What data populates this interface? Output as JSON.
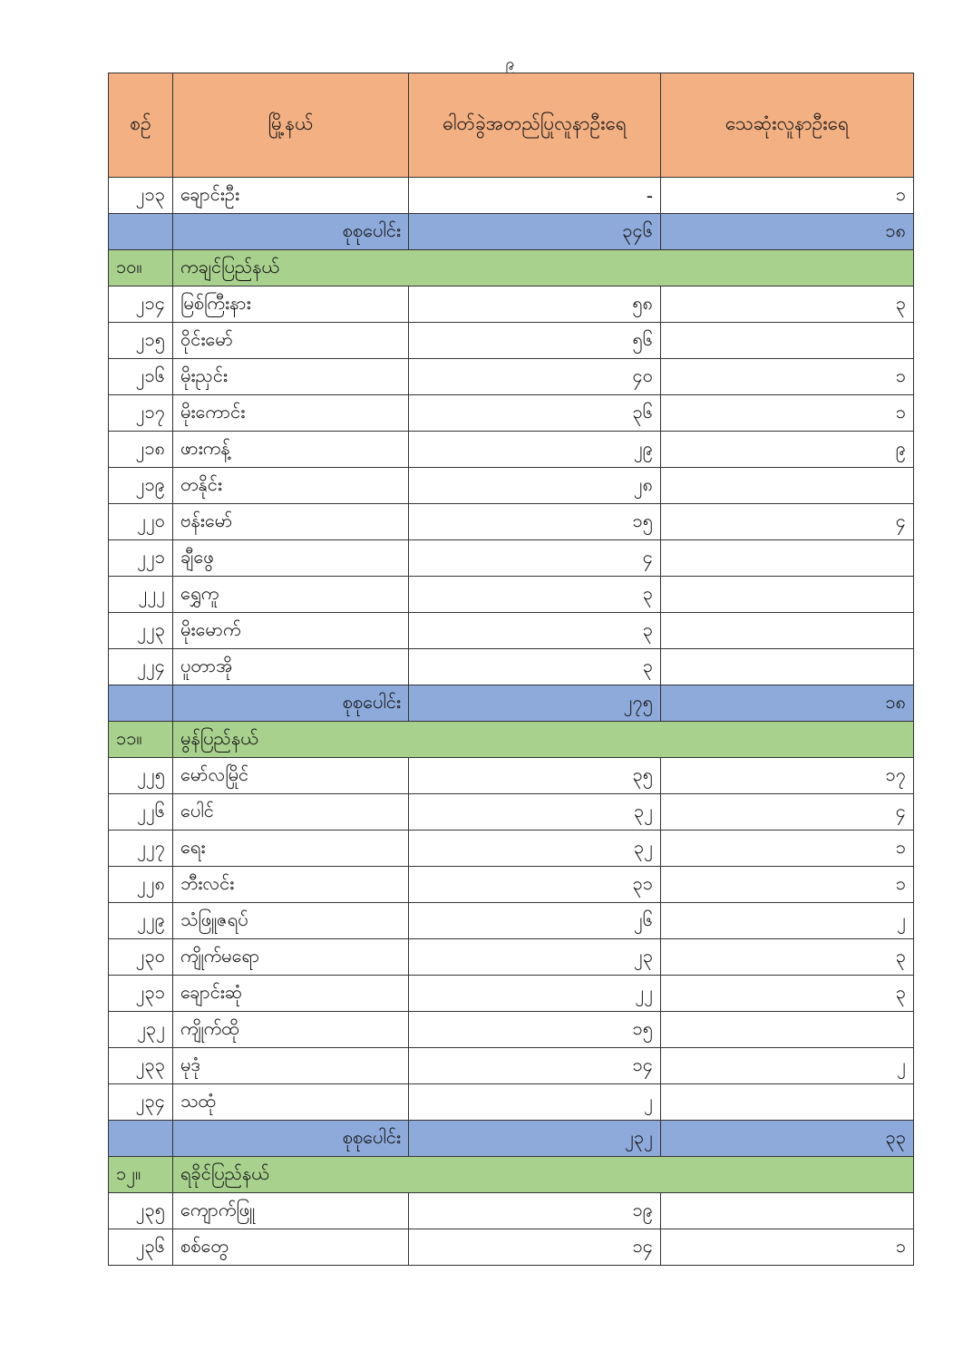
{
  "page_number": "၉",
  "table": {
    "headers": [
      "စဉ်",
      "မြို့နယ်",
      "ဓါတ်ခွဲအတည်ပြုလူနာဦးရေ",
      "သေဆုံးလူနာဦးရေ"
    ],
    "rows": [
      {
        "type": "row",
        "no": "၂၁၃",
        "name": "ချောင်းဦး",
        "confirmed": "-",
        "deaths": "၁"
      },
      {
        "type": "total",
        "name": "စုစုပေါင်း",
        "confirmed": "၃၄၆",
        "deaths": "၁၈"
      },
      {
        "type": "section",
        "no": "၁၀။",
        "name": "ကချင်ပြည်နယ်"
      },
      {
        "type": "row",
        "no": "၂၁၄",
        "name": "မြစ်ကြီးနား",
        "confirmed": "၅၈",
        "deaths": "၃"
      },
      {
        "type": "row",
        "no": "၂၁၅",
        "name": "ဝိုင်းမော်",
        "confirmed": "၅၆",
        "deaths": ""
      },
      {
        "type": "row",
        "no": "၂၁၆",
        "name": "မိုးညှင်း",
        "confirmed": "၄၀",
        "deaths": "၁"
      },
      {
        "type": "row",
        "no": "၂၁၇",
        "name": "မိုးကောင်း",
        "confirmed": "၃၆",
        "deaths": "၁"
      },
      {
        "type": "row",
        "no": "၂၁၈",
        "name": "ဖားကန့်",
        "confirmed": "၂၉",
        "deaths": "၉"
      },
      {
        "type": "row",
        "no": "၂၁၉",
        "name": "တနိုင်း",
        "confirmed": "၂၈",
        "deaths": ""
      },
      {
        "type": "row",
        "no": "၂၂၀",
        "name": "ဗန်းမော်",
        "confirmed": "၁၅",
        "deaths": "၄"
      },
      {
        "type": "row",
        "no": "၂၂၁",
        "name": "ချီဖွေ",
        "confirmed": "၄",
        "deaths": ""
      },
      {
        "type": "row",
        "no": "၂၂၂",
        "name": "ရွှေကူ",
        "confirmed": "၃",
        "deaths": ""
      },
      {
        "type": "row",
        "no": "၂၂၃",
        "name": "မိုးမောက်",
        "confirmed": "၃",
        "deaths": ""
      },
      {
        "type": "row",
        "no": "၂၂၄",
        "name": "ပူတာအို",
        "confirmed": "၃",
        "deaths": ""
      },
      {
        "type": "total",
        "name": "စုစုပေါင်း",
        "confirmed": "၂၇၅",
        "deaths": "၁၈"
      },
      {
        "type": "section",
        "no": "၁၁။",
        "name": "မွန်ပြည်နယ်"
      },
      {
        "type": "row",
        "no": "၂၂၅",
        "name": "မော်လမြိုင်",
        "confirmed": "၃၅",
        "deaths": "၁၇"
      },
      {
        "type": "row",
        "no": "၂၂၆",
        "name": "ပေါင်",
        "confirmed": "၃၂",
        "deaths": "၄"
      },
      {
        "type": "row",
        "no": "၂၂၇",
        "name": "ရေး",
        "confirmed": "၃၂",
        "deaths": "၁"
      },
      {
        "type": "row",
        "no": "၂၂၈",
        "name": "ဘီးလင်း",
        "confirmed": "၃၁",
        "deaths": "၁"
      },
      {
        "type": "row",
        "no": "၂၂၉",
        "name": "သံဖြူဇရပ်",
        "confirmed": "၂၆",
        "deaths": "၂"
      },
      {
        "type": "row",
        "no": "၂၃၀",
        "name": "ကျိုက်မရော",
        "confirmed": "၂၃",
        "deaths": "၃"
      },
      {
        "type": "row",
        "no": "၂၃၁",
        "name": "ချောင်းဆုံ",
        "confirmed": "၂၂",
        "deaths": "၃"
      },
      {
        "type": "row",
        "no": "၂၃၂",
        "name": "ကျိုက်ထို",
        "confirmed": "၁၅",
        "deaths": ""
      },
      {
        "type": "row",
        "no": "၂၃၃",
        "name": "မုဒုံ",
        "confirmed": "၁၄",
        "deaths": "၂"
      },
      {
        "type": "row",
        "no": "၂၃၄",
        "name": "သထုံ",
        "confirmed": "၂",
        "deaths": ""
      },
      {
        "type": "total",
        "name": "စုစုပေါင်း",
        "confirmed": "၂၃၂",
        "deaths": "၃၃"
      },
      {
        "type": "section",
        "no": "၁၂။",
        "name": "ရခိုင်ပြည်နယ်"
      },
      {
        "type": "row",
        "no": "၂၃၅",
        "name": "ကျောက်ဖြူ",
        "confirmed": "၁၉",
        "deaths": ""
      },
      {
        "type": "row",
        "no": "၂၃၆",
        "name": "စစ်တွေ",
        "confirmed": "၁၄",
        "deaths": "၁"
      }
    ]
  },
  "colors": {
    "header": "#f3b083",
    "total": "#8eaadb",
    "section": "#a9d18e"
  }
}
